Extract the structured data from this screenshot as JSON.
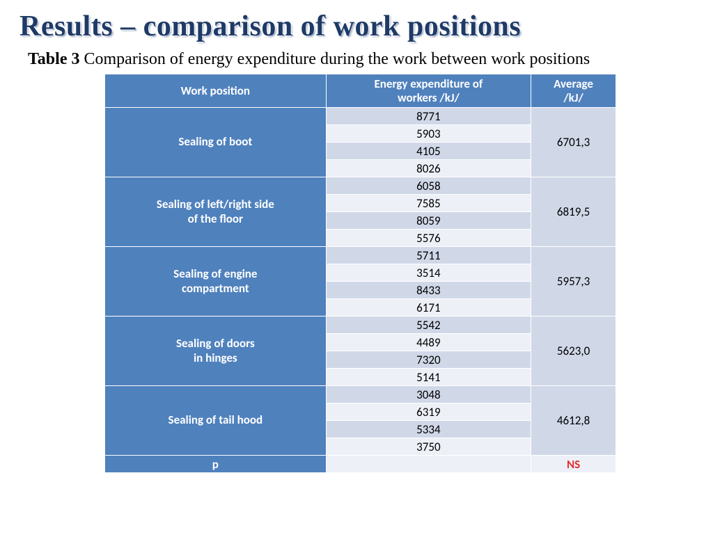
{
  "title": "Results – comparison of work positions",
  "caption_bold": "Table 3",
  "caption_rest": " Comparison of energy expenditure during the work between work positions",
  "table": {
    "type": "table",
    "header_bg": "#4f81bd",
    "header_fg": "#ffffff",
    "stripe_light": "#edf0f7",
    "stripe_dark": "#d0d8e8",
    "ns_color": "#e03030",
    "columns": [
      "Work position",
      "Energy expenditure of workers /kJ/",
      "Average /kJ/"
    ],
    "col1_line1": "Energy expenditure of",
    "col1_line2": "workers /kJ/",
    "col2_line1": "Average",
    "col2_line2": "/kJ/",
    "groups": [
      {
        "position": "Sealing of boot",
        "values": [
          "8771",
          "5903",
          "4105",
          "8026"
        ],
        "average": "6701,3"
      },
      {
        "position_line1": "Sealing of left/right side",
        "position_line2": "of the floor",
        "values": [
          "6058",
          "7585",
          "8059",
          "5576"
        ],
        "average": "6819,5"
      },
      {
        "position_line1": "Sealing of engine",
        "position_line2": "compartment",
        "values": [
          "5711",
          "3514",
          "8433",
          "6171"
        ],
        "average": "5957,3"
      },
      {
        "position_line1": "Sealing of doors",
        "position_line2": "in hinges",
        "values": [
          "5542",
          "4489",
          "7320",
          "5141"
        ],
        "average": "5623,0"
      },
      {
        "position": "Sealing of tail hood",
        "values": [
          "3048",
          "6319",
          "5334",
          "3750"
        ],
        "average": "4612,8"
      }
    ],
    "footer": {
      "label": "p",
      "value": "",
      "result": "NS"
    }
  }
}
